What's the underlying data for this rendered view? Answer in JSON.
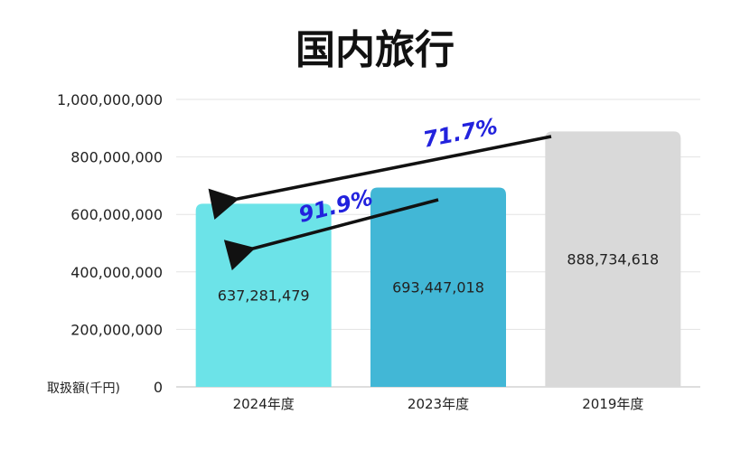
{
  "chart_data": {
    "type": "bar",
    "title": "国内旅行",
    "ylabel": "取扱額(千円)",
    "categories": [
      "2024年度",
      "2023年度",
      "2019年度"
    ],
    "values": [
      637281479,
      693447018,
      888734618
    ],
    "value_labels": [
      "637,281,479",
      "693,447,018",
      "888,734,618"
    ],
    "bar_colors": [
      "#6ce3e8",
      "#42b7d6",
      "#d9d9d9"
    ],
    "ylim": [
      0,
      1000000000
    ],
    "yticks": [
      0,
      200000000,
      400000000,
      600000000,
      800000000,
      1000000000
    ],
    "ytick_labels": [
      "0",
      "200,000,000",
      "400,000,000",
      "600,000,000",
      "800,000,000",
      "1,000,000,000"
    ],
    "grid": true,
    "annotations": [
      {
        "text": "71.7%",
        "from": "2019年度",
        "to": "2024年度",
        "color": "#2222dd"
      },
      {
        "text": "91.9%",
        "from": "2023年度",
        "to": "2024年度",
        "color": "#2222dd"
      }
    ]
  }
}
